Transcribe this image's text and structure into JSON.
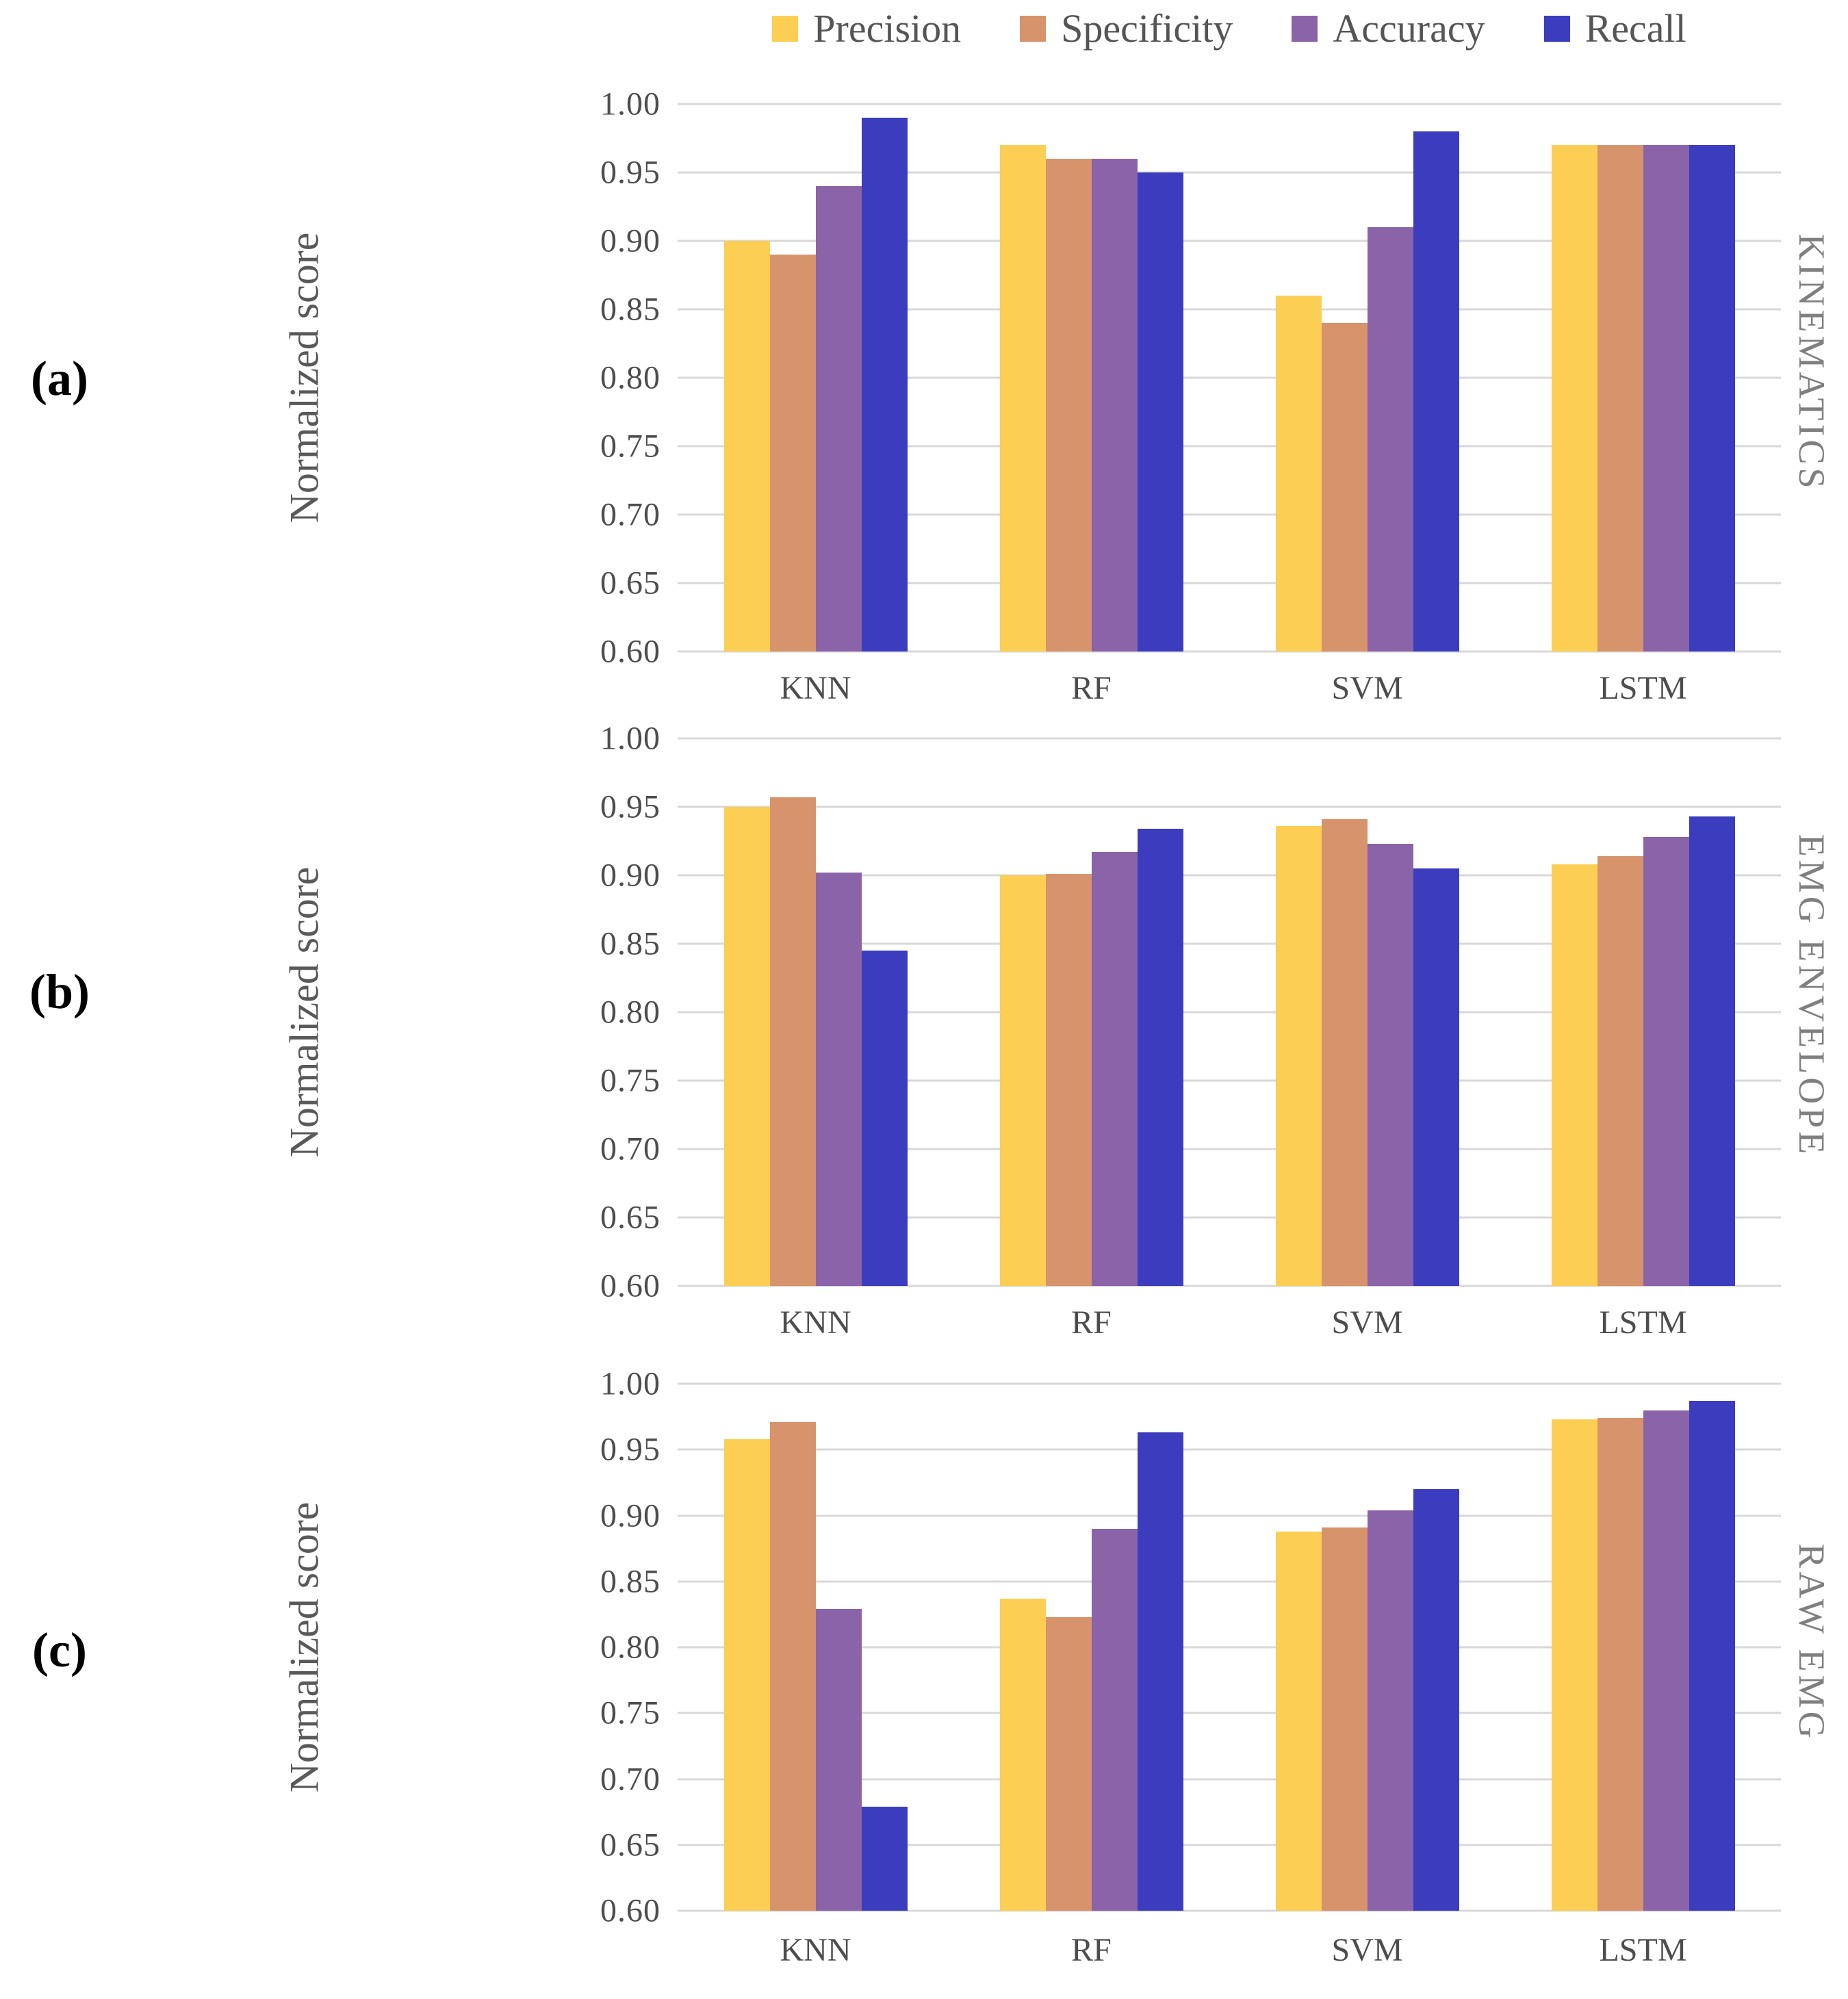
{
  "legend": {
    "items": [
      {
        "label": "Precision",
        "color": "#FCCE53"
      },
      {
        "label": "Specificity",
        "color": "#D6936C"
      },
      {
        "label": "Accuracy",
        "color": "#8A63A9"
      },
      {
        "label": "Recall",
        "color": "#3B3CBE"
      }
    ]
  },
  "panels": [
    {
      "id": "a",
      "letter": "(a)"
    },
    {
      "id": "b",
      "letter": "(b)"
    },
    {
      "id": "c",
      "letter": "(c)"
    }
  ],
  "grid_color": "#d8d8d8",
  "chart_data": [
    {
      "type": "bar",
      "id": "a",
      "title": "KINEMATICS",
      "ylabel": "Normalized score",
      "ylim": [
        0.6,
        1.0
      ],
      "ytick_step": 0.05,
      "yticks": [
        "1.00",
        "0.95",
        "0.90",
        "0.85",
        "0.80",
        "0.75",
        "0.70",
        "0.65",
        "0.60"
      ],
      "grid": true,
      "legend_position": "top",
      "categories": [
        "KNN",
        "RF",
        "SVM",
        "LSTM"
      ],
      "series": [
        {
          "name": "Precision",
          "color": "#FCCE53",
          "values": [
            0.9,
            0.97,
            0.86,
            0.97
          ]
        },
        {
          "name": "Specificity",
          "color": "#D6936C",
          "values": [
            0.89,
            0.96,
            0.84,
            0.97
          ]
        },
        {
          "name": "Accuracy",
          "color": "#8A63A9",
          "values": [
            0.94,
            0.96,
            0.91,
            0.97
          ]
        },
        {
          "name": "Recall",
          "color": "#3B3CBE",
          "values": [
            0.99,
            0.95,
            0.98,
            0.97
          ]
        }
      ]
    },
    {
      "type": "bar",
      "id": "b",
      "title": "EMG ENVELOPE",
      "ylabel": "Normalized score",
      "ylim": [
        0.6,
        1.0
      ],
      "ytick_step": 0.05,
      "yticks": [
        "1.00",
        "0.95",
        "0.90",
        "0.85",
        "0.80",
        "0.75",
        "0.70",
        "0.65",
        "0.60"
      ],
      "grid": true,
      "legend_position": "top",
      "categories": [
        "KNN",
        "RF",
        "SVM",
        "LSTM"
      ],
      "series": [
        {
          "name": "Precision",
          "color": "#FCCE53",
          "values": [
            0.95,
            0.9,
            0.936,
            0.908
          ]
        },
        {
          "name": "Specificity",
          "color": "#D6936C",
          "values": [
            0.957,
            0.901,
            0.941,
            0.914
          ]
        },
        {
          "name": "Accuracy",
          "color": "#8A63A9",
          "values": [
            0.902,
            0.917,
            0.923,
            0.928
          ]
        },
        {
          "name": "Recall",
          "color": "#3B3CBE",
          "values": [
            0.845,
            0.934,
            0.905,
            0.943
          ]
        }
      ]
    },
    {
      "type": "bar",
      "id": "c",
      "title": "RAW EMG",
      "ylabel": "Normalized score",
      "ylim": [
        0.6,
        1.0
      ],
      "ytick_step": 0.05,
      "yticks": [
        "1.00",
        "0.95",
        "0.90",
        "0.85",
        "0.80",
        "0.75",
        "0.70",
        "0.65",
        "0.60"
      ],
      "grid": true,
      "legend_position": "top",
      "categories": [
        "KNN",
        "RF",
        "SVM",
        "LSTM"
      ],
      "series": [
        {
          "name": "Precision",
          "color": "#FCCE53",
          "values": [
            0.958,
            0.837,
            0.888,
            0.973
          ]
        },
        {
          "name": "Specificity",
          "color": "#D6936C",
          "values": [
            0.971,
            0.823,
            0.891,
            0.974
          ]
        },
        {
          "name": "Accuracy",
          "color": "#8A63A9",
          "values": [
            0.829,
            0.89,
            0.904,
            0.98
          ]
        },
        {
          "name": "Recall",
          "color": "#3B3CBE",
          "values": [
            0.679,
            0.963,
            0.92,
            0.987
          ]
        }
      ]
    }
  ]
}
